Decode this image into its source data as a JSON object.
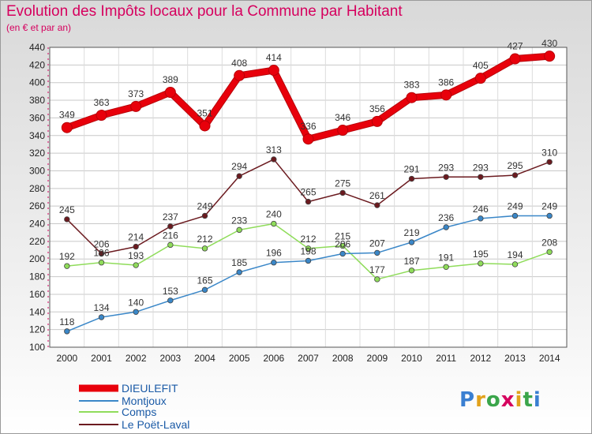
{
  "title": "Evolution des Impôts locaux pour la Commune par Habitant",
  "subtitle": "(en € et par an)",
  "logo": {
    "letters": [
      "P",
      "r",
      "o",
      "x",
      "i",
      "t",
      "i"
    ],
    "colors": [
      "#3a7fd1",
      "#e2a21c",
      "#3aa54a",
      "#d6005e",
      "#e2a21c",
      "#3aa54a",
      "#3a7fd1"
    ]
  },
  "chart_data": {
    "type": "line",
    "title": "Evolution des Impôts locaux pour la Commune par Habitant",
    "subtitle": "(en € et par an)",
    "xlabel": "",
    "ylabel": "",
    "x": [
      "2000",
      "2001",
      "2002",
      "2003",
      "2004",
      "2005",
      "2006",
      "2007",
      "2008",
      "2009",
      "2010",
      "2011",
      "2012",
      "2013",
      "2014"
    ],
    "ylim": [
      100,
      440
    ],
    "yticks": [
      100,
      120,
      140,
      160,
      180,
      200,
      220,
      240,
      260,
      280,
      300,
      320,
      340,
      360,
      380,
      400,
      420,
      440
    ],
    "grid": true,
    "legend_position": "bottom-left",
    "series": [
      {
        "name": "DIEULEFIT",
        "color": "#e8000b",
        "values": [
          349,
          363,
          373,
          389,
          351,
          408,
          414,
          336,
          346,
          356,
          383,
          386,
          405,
          427,
          430
        ],
        "labels": [
          "349",
          "363",
          "373",
          "389",
          "351",
          "408",
          "414",
          "336",
          "346",
          "356",
          "383",
          "386",
          "405",
          "427",
          "430"
        ]
      },
      {
        "name": "Montjoux",
        "color": "#3a87c8",
        "values": [
          118,
          134,
          140,
          153,
          165,
          185,
          196,
          198,
          206,
          207,
          219,
          236,
          246,
          249,
          249
        ],
        "labels": [
          "118",
          "134",
          "140",
          "153",
          "165",
          "185",
          "196",
          "198",
          "206",
          "207",
          "219",
          "236",
          "246",
          "249",
          "249"
        ]
      },
      {
        "name": "Comps",
        "color": "#8fdc5a",
        "values": [
          192,
          196,
          193,
          216,
          212,
          233,
          240,
          212,
          215,
          177,
          187,
          191,
          195,
          194,
          208
        ],
        "labels": [
          "192",
          "196",
          "193",
          "216",
          "212",
          "233",
          "240",
          "212",
          "215",
          "177",
          "187",
          "191",
          "195",
          "194",
          "208"
        ]
      },
      {
        "name": "Le Poët-Laval",
        "color": "#6b1a1f",
        "values": [
          245,
          206,
          214,
          237,
          249,
          294,
          313,
          265,
          275,
          261,
          291,
          293,
          293,
          295,
          310
        ],
        "labels": [
          "245",
          "206",
          "214",
          "237",
          "249",
          "294",
          "313",
          "265",
          "275",
          "261",
          "291",
          "293",
          "293",
          "295",
          "310"
        ]
      }
    ]
  }
}
